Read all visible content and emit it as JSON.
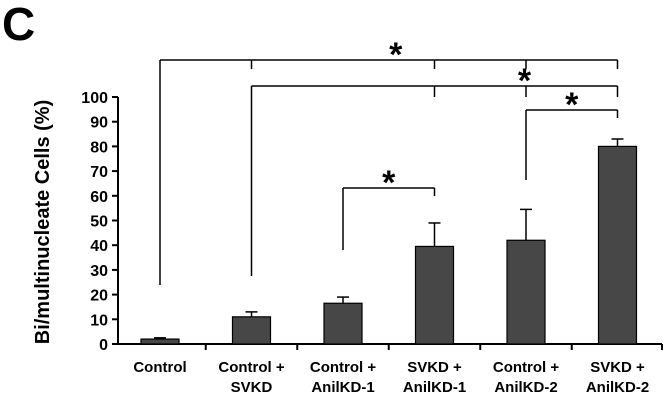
{
  "panel_label": "C",
  "chart_data": {
    "type": "bar",
    "ylabel": "Bi/multinucleate Cells (%)",
    "xlabel": "",
    "ylim": [
      0,
      100
    ],
    "yticks": [
      0,
      10,
      20,
      30,
      40,
      50,
      60,
      70,
      80,
      90,
      100
    ],
    "categories": [
      [
        "Control"
      ],
      [
        "Control +",
        "SVKD"
      ],
      [
        "Control +",
        "AnilKD-1"
      ],
      [
        "SVKD +",
        "AnilKD-1"
      ],
      [
        "Control +",
        "AnilKD-2"
      ],
      [
        "SVKD +",
        "AnilKD-2"
      ]
    ],
    "values": [
      2,
      11,
      16.5,
      39.5,
      42,
      80
    ],
    "errors": [
      0.5,
      2,
      2.5,
      9.5,
      12.5,
      3
    ],
    "bar_color": "#474747",
    "grid": false,
    "significance": [
      {
        "from": 0,
        "to": 5,
        "label": "*",
        "targets": [
          0,
          1,
          3,
          4,
          5
        ]
      },
      {
        "from": 1,
        "to": 5,
        "label": "*",
        "targets": [
          1,
          3,
          4,
          5
        ]
      },
      {
        "from": 4,
        "to": 5,
        "label": "*",
        "targets": [
          4,
          5
        ]
      },
      {
        "from": 2,
        "to": 3,
        "label": "*",
        "targets": [
          2,
          3
        ]
      }
    ]
  }
}
